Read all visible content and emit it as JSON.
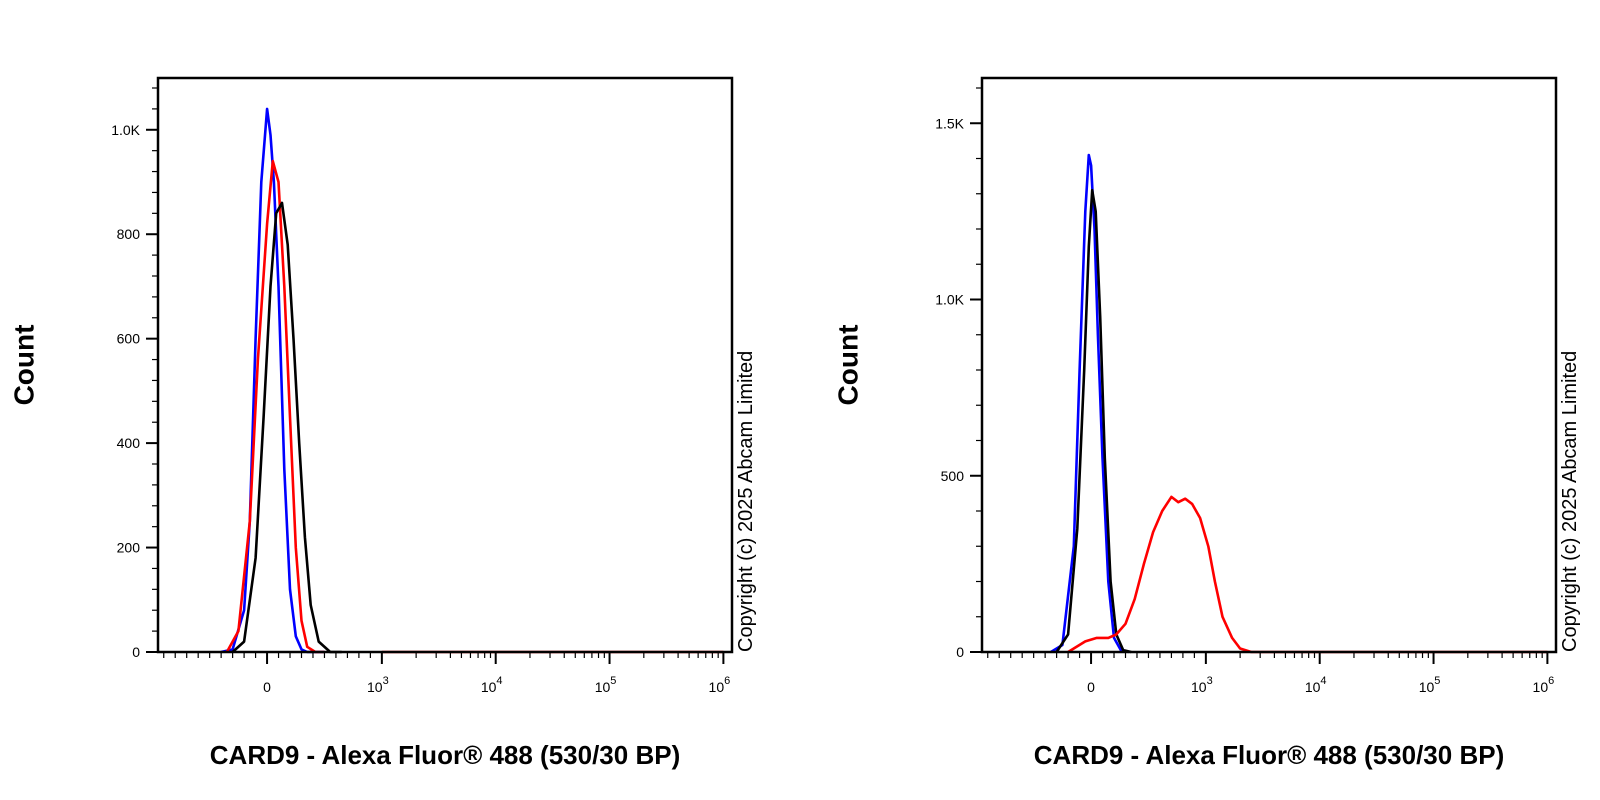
{
  "chart_data": [
    {
      "type": "line",
      "ylabel": "Count",
      "xlabel": "CARD9 - Alexa Fluor® 488 (530/30 BP)",
      "copyright": "Copyright (c) 2025 Abcam Limited",
      "x_scale": "biexponential",
      "xlim": [
        -900,
        1000000
      ],
      "ylim": [
        0,
        1080
      ],
      "y_ticks": [
        0,
        200,
        400,
        600,
        800,
        1000
      ],
      "y_tick_labels": [
        "0",
        "200",
        "400",
        "600",
        "800",
        "1.0K"
      ],
      "x_ticks": [
        {
          "value": 0,
          "label": "0",
          "sup": ""
        },
        {
          "value": 1000,
          "label": "10",
          "sup": "3"
        },
        {
          "value": 10000,
          "label": "10",
          "sup": "4"
        },
        {
          "value": 100000,
          "label": "10",
          "sup": "5"
        },
        {
          "value": 1000000,
          "label": "10",
          "sup": "6"
        }
      ],
      "series": [
        {
          "color": "#0000ff",
          "x": [
            -400,
            -300,
            -200,
            -150,
            -100,
            -50,
            0,
            30,
            60,
            100,
            150,
            200,
            250,
            300,
            350,
            420,
            500
          ],
          "y": [
            0,
            5,
            80,
            250,
            600,
            900,
            1040,
            990,
            900,
            700,
            350,
            120,
            30,
            5,
            0,
            0,
            0
          ]
        },
        {
          "color": "#ff0000",
          "x": [
            -350,
            -250,
            -150,
            -80,
            0,
            50,
            100,
            150,
            200,
            250,
            300,
            350,
            420,
            500
          ],
          "y": [
            0,
            40,
            250,
            560,
            820,
            940,
            900,
            700,
            450,
            200,
            60,
            10,
            0,
            0
          ]
        },
        {
          "color": "#000000",
          "x": [
            -300,
            -200,
            -100,
            -30,
            30,
            80,
            130,
            180,
            230,
            280,
            330,
            380,
            450,
            550,
            650
          ],
          "y": [
            0,
            20,
            180,
            450,
            700,
            840,
            860,
            780,
            600,
            400,
            220,
            90,
            20,
            0,
            0
          ]
        },
        {
          "color": "#ff0000",
          "x": [
            1000,
            100000,
            1000000
          ],
          "y": [
            0,
            0,
            0
          ]
        }
      ]
    },
    {
      "type": "line",
      "ylabel": "Count",
      "xlabel": "CARD9 - Alexa Fluor® 488 (530/30 BP)",
      "copyright": "Copyright (c) 2025 Abcam Limited",
      "x_scale": "biexponential",
      "xlim": [
        -900,
        1000000
      ],
      "ylim": [
        0,
        1600
      ],
      "y_ticks": [
        0,
        500,
        1000,
        1500
      ],
      "y_tick_labels": [
        "0",
        "500",
        "1.0K",
        "1.5K"
      ],
      "x_ticks": [
        {
          "value": 0,
          "label": "0",
          "sup": ""
        },
        {
          "value": 1000,
          "label": "10",
          "sup": "3"
        },
        {
          "value": 10000,
          "label": "10",
          "sup": "4"
        },
        {
          "value": 100000,
          "label": "10",
          "sup": "5"
        },
        {
          "value": 1000000,
          "label": "10",
          "sup": "6"
        }
      ],
      "series": [
        {
          "color": "#0000ff",
          "x": [
            -350,
            -250,
            -150,
            -100,
            -50,
            -20,
            0,
            30,
            60,
            100,
            150,
            200,
            260,
            330
          ],
          "y": [
            0,
            20,
            300,
            800,
            1250,
            1410,
            1380,
            1200,
            900,
            550,
            200,
            40,
            5,
            0
          ]
        },
        {
          "color": "#000000",
          "x": [
            -300,
            -200,
            -120,
            -60,
            -20,
            10,
            40,
            80,
            120,
            170,
            220,
            280,
            350
          ],
          "y": [
            0,
            50,
            350,
            800,
            1150,
            1310,
            1250,
            950,
            550,
            200,
            50,
            5,
            0
          ]
        },
        {
          "color": "#ff0000",
          "x": [
            -200,
            -50,
            50,
            150,
            220,
            300,
            380,
            460,
            540,
            620,
            700,
            760,
            820,
            880,
            950,
            1050,
            1200,
            1400,
            1700,
            2000,
            2500,
            3000,
            10000,
            100000,
            1000000
          ],
          "y": [
            0,
            30,
            40,
            40,
            50,
            80,
            150,
            250,
            340,
            400,
            440,
            425,
            435,
            420,
            380,
            300,
            200,
            100,
            40,
            10,
            0,
            0,
            0,
            0,
            0
          ]
        }
      ]
    }
  ]
}
